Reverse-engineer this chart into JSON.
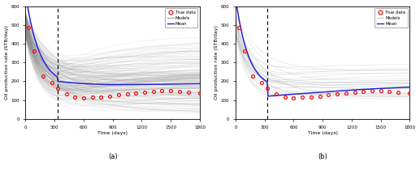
{
  "xlim": [
    0,
    1800
  ],
  "ylim": [
    0,
    600
  ],
  "yticks": [
    0,
    100,
    200,
    300,
    400,
    500,
    600
  ],
  "xticks": [
    0,
    300,
    600,
    900,
    1200,
    1500,
    1800
  ],
  "dashed_line_x": 330,
  "ylabel": "Oil production rate (STB/day)",
  "xlabel": "Time (days)",
  "label_a": "(a)",
  "label_b": "(b)",
  "true_data_color": "#ee1111",
  "mean_color": "#2222dd",
  "model_color_a": "#888888",
  "model_color_b": "#bbbbbb",
  "n_models_a": 200,
  "n_models_b": 30,
  "true_t": [
    30,
    90,
    180,
    270,
    330,
    420,
    510,
    600,
    690,
    780,
    870,
    960,
    1050,
    1140,
    1230,
    1320,
    1410,
    1500,
    1590,
    1680,
    1800
  ],
  "true_y": [
    485,
    360,
    228,
    195,
    162,
    132,
    118,
    112,
    115,
    118,
    122,
    128,
    132,
    137,
    143,
    148,
    150,
    150,
    147,
    143,
    138
  ]
}
